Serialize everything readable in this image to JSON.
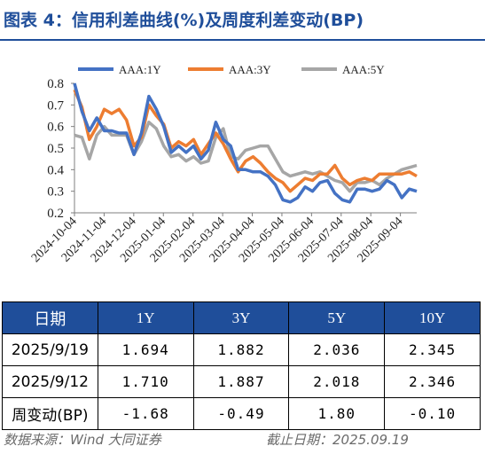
{
  "title": "图表 4：信用利差曲线(%)及周度利差变动(BP)",
  "chart_data": {
    "type": "line",
    "ylim": [
      0.2,
      0.8
    ],
    "yticks": [
      "0.2",
      "0.3",
      "0.4",
      "0.5",
      "0.6",
      "0.7",
      "0.8"
    ],
    "x_tick_labels": [
      "2024-10-04",
      "2024-11-04",
      "2024-12-04",
      "2025-01-04",
      "2025-02-04",
      "2025-03-04",
      "2025-04-04",
      "2025-05-04",
      "2025-06-04",
      "2025-07-04",
      "2025-08-04",
      "2025-09-04"
    ],
    "grid": false,
    "legend_position": "top",
    "series": [
      {
        "name": "AAA:1Y",
        "color": "#4472c4",
        "values": [
          0.8,
          0.67,
          0.58,
          0.64,
          0.58,
          0.58,
          0.57,
          0.57,
          0.47,
          0.57,
          0.74,
          0.68,
          0.6,
          0.48,
          0.51,
          0.48,
          0.51,
          0.45,
          0.49,
          0.62,
          0.54,
          0.51,
          0.4,
          0.4,
          0.39,
          0.39,
          0.37,
          0.33,
          0.26,
          0.25,
          0.27,
          0.32,
          0.3,
          0.34,
          0.35,
          0.29,
          0.26,
          0.25,
          0.31,
          0.31,
          0.3,
          0.31,
          0.35,
          0.33,
          0.27,
          0.31,
          0.3
        ]
      },
      {
        "name": "AAA:3Y",
        "color": "#ed7d31",
        "values": [
          0.77,
          0.69,
          0.54,
          0.6,
          0.68,
          0.66,
          0.68,
          0.63,
          0.51,
          0.55,
          0.7,
          0.65,
          0.61,
          0.5,
          0.53,
          0.51,
          0.54,
          0.47,
          0.52,
          0.57,
          0.52,
          0.45,
          0.39,
          0.44,
          0.46,
          0.43,
          0.39,
          0.36,
          0.34,
          0.3,
          0.33,
          0.36,
          0.35,
          0.38,
          0.38,
          0.42,
          0.36,
          0.33,
          0.35,
          0.36,
          0.35,
          0.38,
          0.38,
          0.38,
          0.38,
          0.39,
          0.37
        ]
      },
      {
        "name": "AAA:5Y",
        "color": "#a6a6a6",
        "values": [
          0.56,
          0.55,
          0.45,
          0.56,
          0.6,
          0.56,
          0.56,
          0.56,
          0.47,
          0.53,
          0.62,
          0.59,
          0.51,
          0.46,
          0.47,
          0.44,
          0.46,
          0.43,
          0.44,
          0.55,
          0.59,
          0.46,
          0.45,
          0.49,
          0.5,
          0.51,
          0.51,
          0.45,
          0.39,
          0.37,
          0.38,
          0.39,
          0.38,
          0.39,
          0.37,
          0.35,
          0.34,
          0.3,
          0.34,
          0.34,
          0.35,
          0.33,
          0.36,
          0.38,
          0.4,
          0.41,
          0.42
        ]
      }
    ]
  },
  "table": {
    "headers": [
      "日期",
      "1Y",
      "3Y",
      "5Y",
      "10Y"
    ],
    "rows": [
      [
        "2025/9/19",
        "1.694",
        "1.882",
        "2.036",
        "2.345"
      ],
      [
        "2025/9/12",
        "1.710",
        "1.887",
        "2.018",
        "2.346"
      ],
      [
        "周变动(BP)",
        "-1.68",
        "-0.49",
        "1.80",
        "-0.10"
      ]
    ]
  },
  "footer": {
    "source": "数据来源：Wind 大同证券",
    "date": "截止日期：2025.09.19"
  }
}
